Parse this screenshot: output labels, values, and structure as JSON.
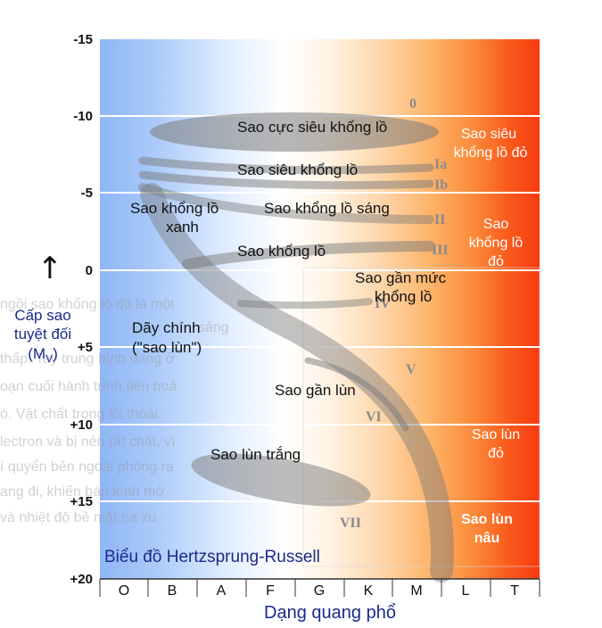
{
  "title": "Biểu đồ Hertzsprung-Russell",
  "xlabel": "Dạng quang phổ",
  "ylabel": {
    "arrow": "↑",
    "line1": "Cấp sao",
    "line2": "tuyệt đối",
    "line3": "(M",
    "sub": "V",
    "line3_end": ")"
  },
  "y_ticks": [
    "-15",
    "-10",
    "-5",
    "0",
    "+5",
    "+10",
    "+15",
    "+20"
  ],
  "x_ticks": [
    "O",
    "B",
    "A",
    "F",
    "G",
    "K",
    "M",
    "L",
    "T"
  ],
  "regions": {
    "hypergiants": "Sao cực siêu khổng lồ",
    "supergiants": "Sao siêu khổng lồ",
    "bright_giants": "Sao khổng lồ sáng",
    "blue_giants_1": "Sao khổng lồ",
    "blue_giants_2": "xanh",
    "giants": "Sao khổng lồ",
    "subgiants_1": "Sao gần mức",
    "subgiants_2": "khổng lồ",
    "main_sequence_1": "Dãy chính",
    "main_sequence_2": "(\"sao lùn\")",
    "subdwarfs": "Sao gần lùn",
    "white_dwarfs": "Sao lùn trắng",
    "red_supergiants_1": "Sao siêu",
    "red_supergiants_2": "khổng lồ đỏ",
    "red_giants_1": "Sao",
    "red_giants_2": "khổng lồ",
    "red_giants_3": "đỏ",
    "red_dwarfs_1": "Sao lùn",
    "red_dwarfs_2": "đỏ",
    "brown_dwarfs_1": "Sao lùn",
    "brown_dwarfs_2": "nâu"
  },
  "luminosity_classes": [
    "0",
    "Ia",
    "Ib",
    "II",
    "III",
    "IV",
    "V",
    "VI",
    "VII"
  ],
  "background_text": [
    "ngồi sao khổng lồ đỏ là một",
    "sáng",
    "thấp. Tay trung bình đang ở",
    "oạn cuối hành trình tiến hoá",
    "ó. Vật chất trong lõi thoái",
    "lectron và bị nén rất chặt, vì",
    "í quyển bên ngoài phồng ra",
    "ang đi, khiến bán kính mở",
    "và nhiệt độ bề mặt hạ xu"
  ],
  "colors": {
    "blue_class": "#9cc0f8",
    "white_class": "#ffffff",
    "orange_class": "#fdb46a",
    "red_class": "#f83a10",
    "axis_label": "#1a2a8a"
  }
}
